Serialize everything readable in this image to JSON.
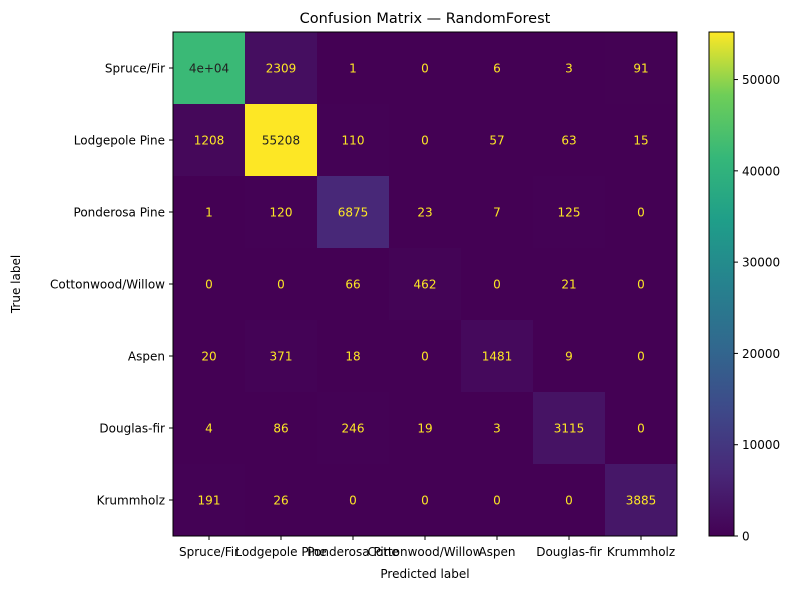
{
  "chart_data": {
    "type": "heatmap",
    "title": "Confusion Matrix — RandomForest",
    "xlabel": "Predicted label",
    "ylabel": "True label",
    "x_categories": [
      "Spruce/Fir",
      "Lodgepole Pine",
      "Ponderosa Pine",
      "Cottonwood/Willow",
      "Aspen",
      "Douglas-fir",
      "Krummholz"
    ],
    "y_categories": [
      "Spruce/Fir",
      "Lodgepole Pine",
      "Ponderosa Pine",
      "Cottonwood/Willow",
      "Aspen",
      "Douglas-fir",
      "Krummholz"
    ],
    "values": [
      [
        42000,
        2309,
        1,
        0,
        6,
        3,
        91
      ],
      [
        1208,
        55208,
        110,
        0,
        57,
        63,
        15
      ],
      [
        1,
        120,
        6875,
        23,
        7,
        125,
        0
      ],
      [
        0,
        0,
        66,
        462,
        0,
        21,
        0
      ],
      [
        20,
        371,
        18,
        0,
        1481,
        9,
        0
      ],
      [
        4,
        86,
        246,
        19,
        3,
        3115,
        0
      ],
      [
        191,
        26,
        0,
        0,
        0,
        0,
        3885
      ]
    ],
    "cell_labels": [
      [
        "4e+04",
        "2309",
        "1",
        "0",
        "6",
        "3",
        "91"
      ],
      [
        "1208",
        "55208",
        "110",
        "0",
        "57",
        "63",
        "15"
      ],
      [
        "1",
        "120",
        "6875",
        "23",
        "7",
        "125",
        "0"
      ],
      [
        "0",
        "0",
        "66",
        "462",
        "0",
        "21",
        "0"
      ],
      [
        "20",
        "371",
        "18",
        "0",
        "1481",
        "9",
        "0"
      ],
      [
        "4",
        "86",
        "246",
        "19",
        "3",
        "3115",
        "0"
      ],
      [
        "191",
        "26",
        "0",
        "0",
        "0",
        "0",
        "3885"
      ]
    ],
    "colormap": "viridis",
    "vmin": 0,
    "vmax": 55208,
    "colorbar_ticks": [
      0,
      10000,
      20000,
      30000,
      40000,
      50000
    ],
    "colorbar_tick_labels": [
      "0",
      "10000",
      "20000",
      "30000",
      "40000",
      "50000"
    ],
    "dark_text_color": "#fde725",
    "light_text_color": "#222222"
  }
}
